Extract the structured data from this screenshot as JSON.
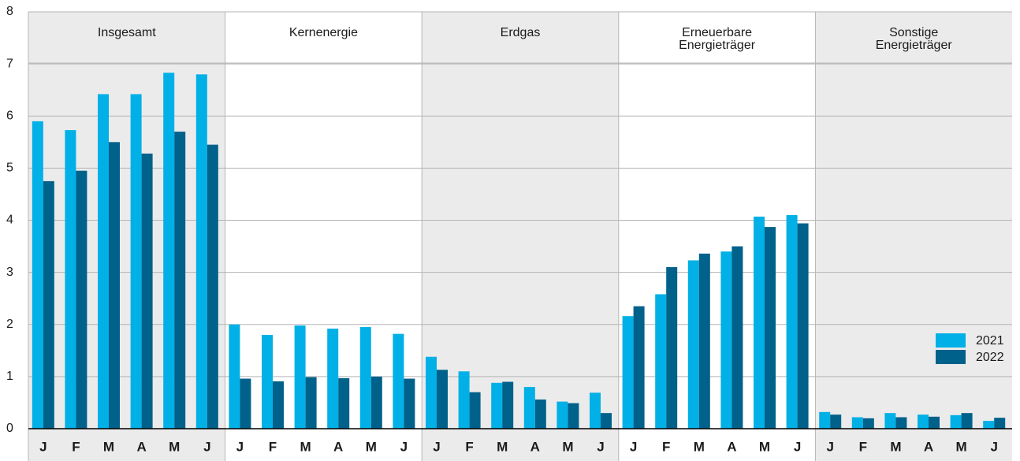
{
  "chart_data": {
    "type": "bar",
    "ylim": [
      0,
      8
    ],
    "yticks": [
      0,
      1,
      2,
      3,
      4,
      5,
      6,
      7,
      8
    ],
    "grid": true,
    "legend": "right",
    "series": [
      {
        "name": "2021",
        "color": "#00b0e6"
      },
      {
        "name": "2022",
        "color": "#00618a"
      }
    ],
    "panels": [
      {
        "title": [
          "Insgesamt"
        ],
        "categories": [
          "J",
          "F",
          "M",
          "A",
          "M",
          "J"
        ],
        "values": [
          [
            5.9,
            5.73,
            6.42,
            6.42,
            6.83,
            6.8
          ],
          [
            4.75,
            4.95,
            5.5,
            5.28,
            5.7,
            5.45
          ]
        ]
      },
      {
        "title": [
          "Kernenergie"
        ],
        "categories": [
          "J",
          "F",
          "M",
          "A",
          "M",
          "J"
        ],
        "values": [
          [
            2.0,
            1.8,
            1.98,
            1.92,
            1.95,
            1.82
          ],
          [
            0.96,
            0.91,
            0.99,
            0.97,
            1.0,
            0.96
          ]
        ]
      },
      {
        "title": [
          "Erdgas"
        ],
        "categories": [
          "J",
          "F",
          "M",
          "A",
          "M",
          "J"
        ],
        "values": [
          [
            1.38,
            1.1,
            0.88,
            0.8,
            0.52,
            0.69
          ],
          [
            1.13,
            0.7,
            0.9,
            0.56,
            0.49,
            0.3
          ]
        ]
      },
      {
        "title": [
          "Erneuerbare",
          "Energieträger"
        ],
        "categories": [
          "J",
          "F",
          "M",
          "A",
          "M",
          "J"
        ],
        "values": [
          [
            2.16,
            2.58,
            3.23,
            3.4,
            4.07,
            4.1
          ],
          [
            2.35,
            3.1,
            3.36,
            3.5,
            3.87,
            3.94
          ]
        ]
      },
      {
        "title": [
          "Sonstige",
          "Energieträger"
        ],
        "categories": [
          "J",
          "F",
          "M",
          "A",
          "M",
          "J"
        ],
        "values": [
          [
            0.32,
            0.22,
            0.3,
            0.27,
            0.26,
            0.15
          ],
          [
            0.27,
            0.2,
            0.22,
            0.23,
            0.3,
            0.21
          ]
        ]
      }
    ]
  }
}
